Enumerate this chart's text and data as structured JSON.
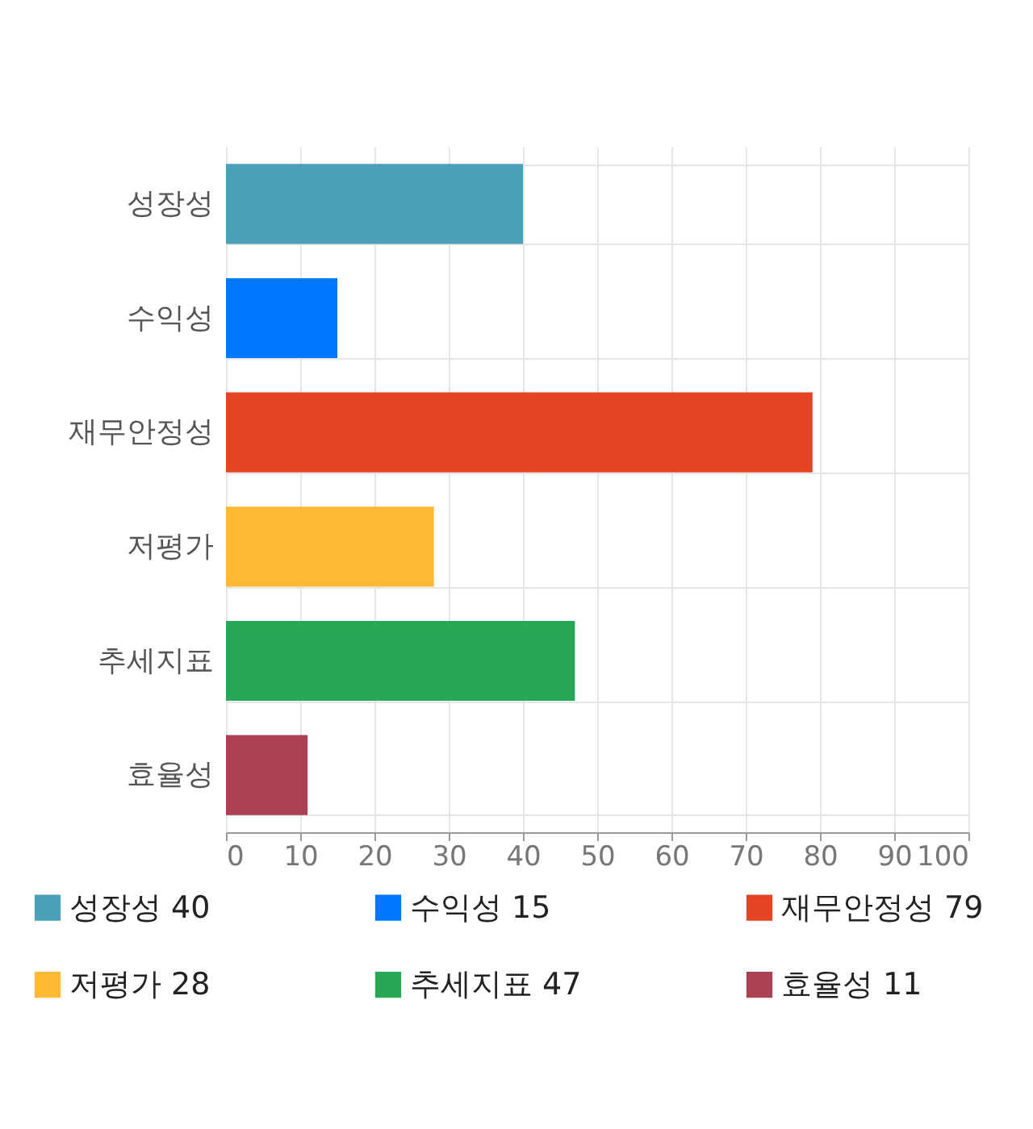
{
  "chart_data": {
    "type": "bar",
    "orientation": "horizontal",
    "categories": [
      "성장성",
      "수익성",
      "재무안정성",
      "저평가",
      "추세지표",
      "효율성"
    ],
    "values": [
      40,
      15,
      79,
      28,
      47,
      11
    ],
    "annotations": [
      "성장성 40",
      "수익성 15",
      "재무안정성 79",
      "저평가 28",
      "추세지표 47",
      "효율성 11"
    ],
    "colors": [
      "#4aa1b9",
      "#0077ff",
      "#e24424",
      "#fdb933",
      "#28a755",
      "#aa4152"
    ],
    "xlim": [
      0,
      100
    ],
    "xticks": [
      0,
      10,
      20,
      30,
      40,
      50,
      60,
      70,
      80,
      90,
      100
    ],
    "grid": true
  }
}
